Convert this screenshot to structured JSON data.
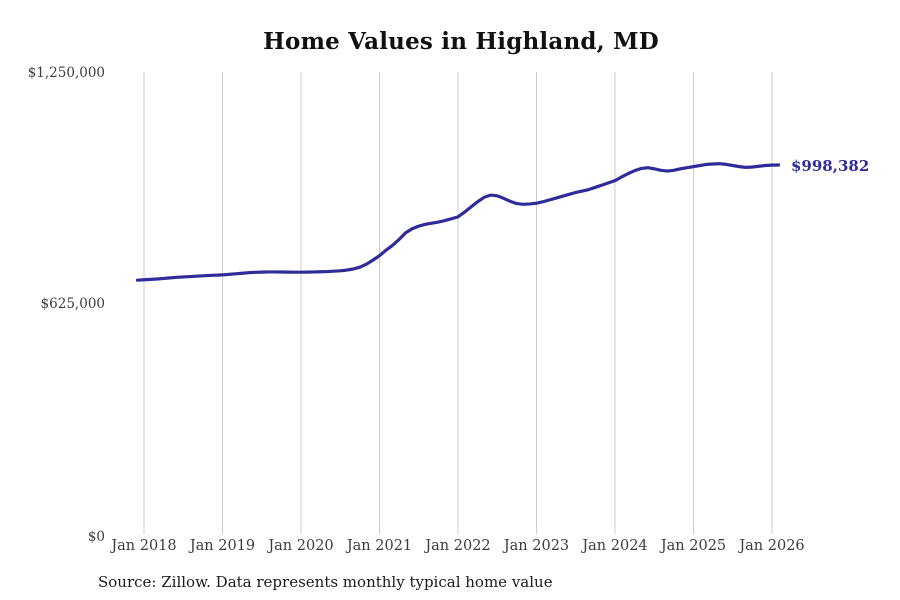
{
  "title": "Home Values in Highland, MD",
  "end_label": "$998,382",
  "source_note": "Source: Zillow. Data represents monthly typical home value",
  "colors": {
    "line": "#2f2c99",
    "grid": "#cccccc",
    "title": "#111111",
    "tick_label": "#3d3d3d",
    "end_label": "#2f2c99",
    "source": "#1b1b1b",
    "background": "#ffffff"
  },
  "y_axis": {
    "ticks": [
      {
        "label": "$1,250,000",
        "value": 1250000
      },
      {
        "label": "$625,000",
        "value": 625000
      },
      {
        "label": "$0",
        "value": 0
      }
    ]
  },
  "x_axis": {
    "ticks": [
      "Jan 2018",
      "Jan 2019",
      "Jan 2020",
      "Jan 2021",
      "Jan 2022",
      "Jan 2023",
      "Jan 2024",
      "Jan 2025",
      "Jan 2026"
    ]
  },
  "chart_data": {
    "type": "line",
    "title": "Home Values in Highland, MD",
    "series_name": "Monthly typical home value (Zillow)",
    "unit": "USD",
    "frequency": "monthly",
    "start_month": "2017-12",
    "end_month": "2026-02",
    "months_before_first_tick": 1,
    "latest_value": 998382,
    "xlabel": "",
    "ylabel": "",
    "ylim": [
      0,
      1250000
    ],
    "x_tick_labels": [
      "Jan 2018",
      "Jan 2019",
      "Jan 2020",
      "Jan 2021",
      "Jan 2022",
      "Jan 2023",
      "Jan 2024",
      "Jan 2025",
      "Jan 2026"
    ],
    "y_tick_labels": [
      "$0",
      "$625,000",
      "$1,250,000"
    ],
    "grid": "vertical-only",
    "legend": "none",
    "values": [
      686800,
      688000,
      689000,
      690000,
      691500,
      693000,
      694500,
      695500,
      696500,
      697500,
      698500,
      699500,
      700200,
      701000,
      702500,
      704000,
      705500,
      707000,
      708000,
      708500,
      709000,
      709000,
      708800,
      708500,
      708300,
      708300,
      708500,
      709000,
      709500,
      710000,
      711000,
      712000,
      714000,
      717000,
      722000,
      730000,
      741000,
      753000,
      768000,
      781000,
      797000,
      815000,
      826000,
      833000,
      838000,
      841000,
      844000,
      848000,
      853000,
      858000,
      871000,
      885000,
      899000,
      911000,
      917000,
      915000,
      908000,
      900000,
      894000,
      892000,
      893000,
      895000,
      899000,
      904000,
      909000,
      914000,
      919000,
      924000,
      928000,
      932000,
      938000,
      944000,
      950000,
      956000,
      966000,
      975000,
      983000,
      989000,
      991000,
      988000,
      984000,
      982000,
      984000,
      988000,
      991000,
      994000,
      997000,
      1000000,
      1001000,
      1002000,
      1000000,
      997000,
      994000,
      992000,
      993000,
      995000,
      997000,
      998000,
      998382
    ]
  }
}
